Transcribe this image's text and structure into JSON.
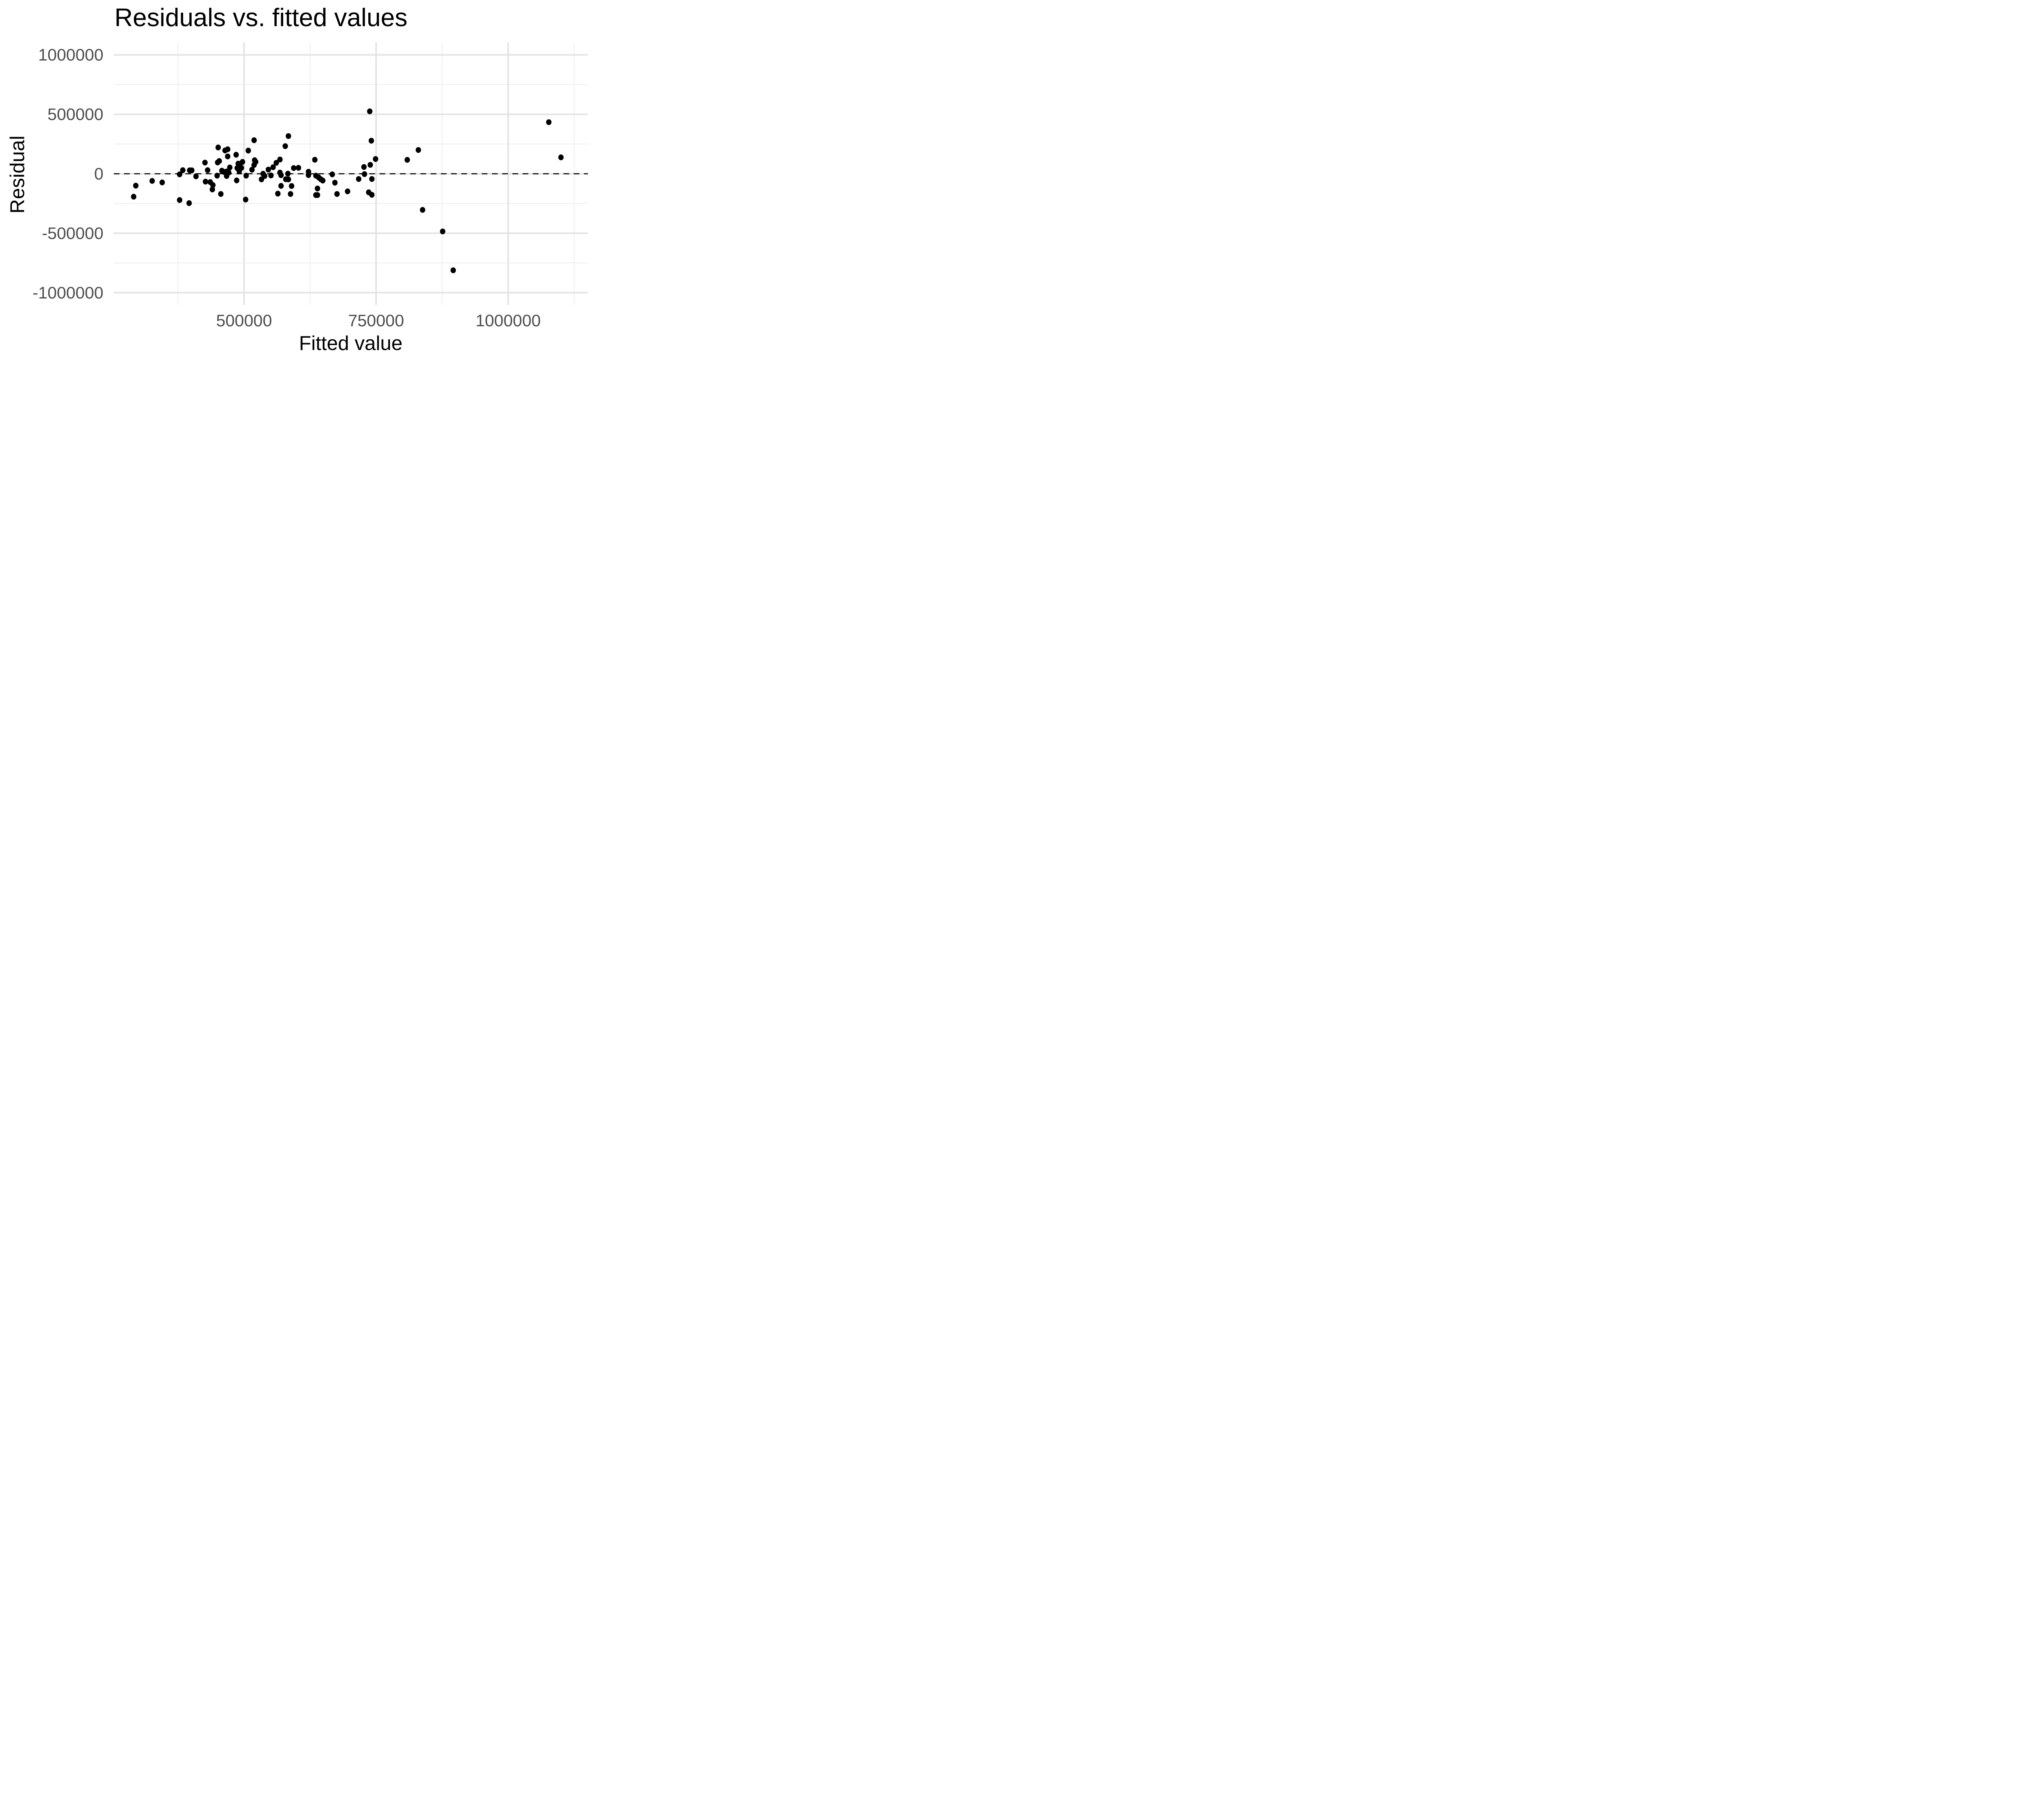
{
  "chart_data": {
    "type": "scatter",
    "title": "Residuals vs. fitted values",
    "xlabel": "Fitted value",
    "ylabel": "Residual",
    "legend": "none",
    "grid": "on",
    "background_color": "#FFFFFF",
    "point_color": "#000000",
    "grid_major_color": "#E4E4E4",
    "grid_minor_color": "#EEEEEE",
    "tick_text_color": "#4D4D4D",
    "title_text_color": "#000000",
    "xlim": [
      253000,
      1151000
    ],
    "ylim": [
      -1104000,
      1104000
    ],
    "x_ticks": [
      {
        "value": 500000,
        "label": "500000"
      },
      {
        "value": 750000,
        "label": "750000"
      },
      {
        "value": 1000000,
        "label": "1000000"
      }
    ],
    "x_minor_gridlines": [
      375000,
      625000,
      875000,
      1125000
    ],
    "y_ticks": [
      {
        "value": 1000000,
        "label": "1000000"
      },
      {
        "value": 500000,
        "label": "500000"
      },
      {
        "value": 0,
        "label": "0"
      },
      {
        "value": -500000,
        "label": "-500000"
      },
      {
        "value": -1000000,
        "label": "-1000000"
      }
    ],
    "y_minor_gridlines": [
      750000,
      250000,
      -250000,
      -750000
    ],
    "reference_line": {
      "y": 0,
      "linetype": "dashed",
      "color": "#000000"
    },
    "points": [
      [
        295000,
        -100000
      ],
      [
        291000,
        -193000
      ],
      [
        326000,
        -60000
      ],
      [
        345000,
        -73000
      ],
      [
        378000,
        -5000
      ],
      [
        384000,
        30000
      ],
      [
        397000,
        29000
      ],
      [
        401000,
        29000
      ],
      [
        431000,
        30000
      ],
      [
        409000,
        -22000
      ],
      [
        378000,
        -221000
      ],
      [
        396000,
        -247000
      ],
      [
        427000,
        -66000
      ],
      [
        436000,
        -70000
      ],
      [
        441000,
        -95000
      ],
      [
        440000,
        -132000
      ],
      [
        456000,
        -170000
      ],
      [
        451000,
        221000
      ],
      [
        464000,
        196000
      ],
      [
        469000,
        206000
      ],
      [
        469000,
        146000
      ],
      [
        426000,
        94000
      ],
      [
        450000,
        95000
      ],
      [
        453000,
        107000
      ],
      [
        473000,
        53000
      ],
      [
        458000,
        26000
      ],
      [
        462000,
        15000
      ],
      [
        467000,
        19000
      ],
      [
        471000,
        10000
      ],
      [
        449000,
        -16000
      ],
      [
        467000,
        -19000
      ],
      [
        485000,
        160000
      ],
      [
        487000,
        48000
      ],
      [
        489000,
        85000
      ],
      [
        492000,
        67000
      ],
      [
        495000,
        50000
      ],
      [
        490000,
        34000
      ],
      [
        491000,
        22000
      ],
      [
        497000,
        100000
      ],
      [
        486000,
        -56000
      ],
      [
        504000,
        -16000
      ],
      [
        508000,
        195000
      ],
      [
        503000,
        -217000
      ],
      [
        515000,
        34000
      ],
      [
        519000,
        74000
      ],
      [
        520000,
        114000
      ],
      [
        522000,
        100000
      ],
      [
        519000,
        282000
      ],
      [
        536000,
        0
      ],
      [
        539000,
        -19000
      ],
      [
        533000,
        -47000
      ],
      [
        551000,
        -14000
      ],
      [
        546000,
        35000
      ],
      [
        555000,
        55000
      ],
      [
        561000,
        92000
      ],
      [
        568000,
        120000
      ],
      [
        584000,
        317000
      ],
      [
        578000,
        232000
      ],
      [
        568000,
        10000
      ],
      [
        570000,
        -12000
      ],
      [
        583000,
        1000
      ],
      [
        579000,
        -46000
      ],
      [
        584000,
        -47000
      ],
      [
        564000,
        -167000
      ],
      [
        588000,
        -170000
      ],
      [
        570000,
        -102000
      ],
      [
        590000,
        -103000
      ],
      [
        594000,
        48000
      ],
      [
        603000,
        50000
      ],
      [
        622000,
        17000
      ],
      [
        622000,
        -11000
      ],
      [
        634000,
        118000
      ],
      [
        636000,
        -16000
      ],
      [
        641000,
        -30000
      ],
      [
        645000,
        -45000
      ],
      [
        649000,
        -57000
      ],
      [
        639000,
        -124000
      ],
      [
        636000,
        -179000
      ],
      [
        639000,
        -179000
      ],
      [
        667000,
        -5000
      ],
      [
        672000,
        -75000
      ],
      [
        696000,
        -148000
      ],
      [
        676000,
        -170000
      ],
      [
        717000,
        -44000
      ],
      [
        727000,
        57000
      ],
      [
        739000,
        75000
      ],
      [
        738000,
        525000
      ],
      [
        741000,
        278000
      ],
      [
        742000,
        -44000
      ],
      [
        736000,
        -156000
      ],
      [
        742000,
        -177000
      ],
      [
        728000,
        -3000
      ],
      [
        749000,
        124000
      ],
      [
        809000,
        117000
      ],
      [
        830000,
        200000
      ],
      [
        838000,
        -304000
      ],
      [
        876000,
        -485000
      ],
      [
        896000,
        -812000
      ],
      [
        1077000,
        434000
      ],
      [
        1100000,
        138000
      ]
    ]
  }
}
